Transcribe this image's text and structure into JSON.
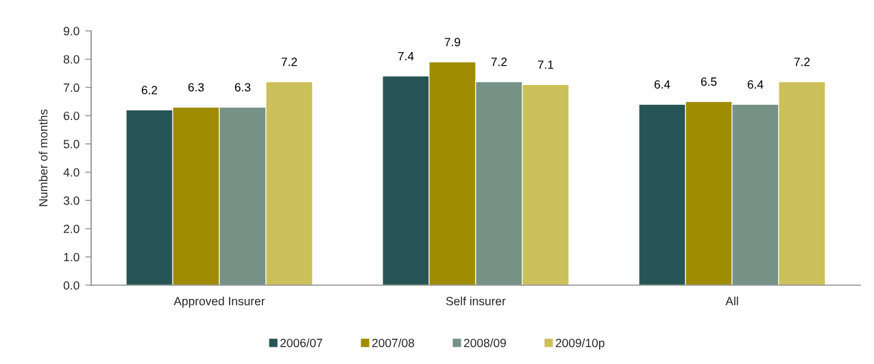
{
  "chart_data": {
    "type": "bar",
    "ylabel": "Number of months",
    "categories": [
      "Approved Insurer",
      "Self insurer",
      "All"
    ],
    "series": [
      {
        "name": "2006/07",
        "color": "#275454",
        "values": [
          6.2,
          7.4,
          6.4
        ]
      },
      {
        "name": "2007/08",
        "color": "#a08c00",
        "values": [
          6.3,
          7.9,
          6.5
        ]
      },
      {
        "name": "2008/09",
        "color": "#769286",
        "values": [
          6.3,
          7.2,
          6.4
        ]
      },
      {
        "name": "2009/10p",
        "color": "#ccc05a",
        "values": [
          7.2,
          7.1,
          7.2
        ]
      }
    ],
    "ylim": [
      0,
      9
    ],
    "yticks": [
      {
        "value": 0,
        "label": "0.0"
      },
      {
        "value": 1,
        "label": "1.0"
      },
      {
        "value": 2,
        "label": "2.0"
      },
      {
        "value": 3,
        "label": "3.0"
      },
      {
        "value": 4,
        "label": "4.0"
      },
      {
        "value": 5,
        "label": "5.0"
      },
      {
        "value": 6,
        "label": "6.0"
      },
      {
        "value": 7,
        "label": "7.0"
      },
      {
        "value": 8,
        "label": "8.0"
      },
      {
        "value": 9,
        "label": "9.0"
      }
    ],
    "data_labels": true,
    "legend": "bottom"
  }
}
